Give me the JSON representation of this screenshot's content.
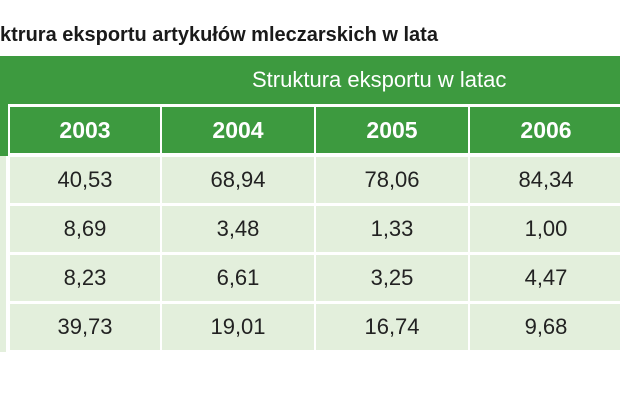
{
  "header": {
    "title": "ktrura eksportu artykułów mleczarskich w lata"
  },
  "table": {
    "group_header": "Struktura eksportu w latac",
    "years": [
      "2003",
      "2004",
      "2005",
      "2006"
    ],
    "rows": [
      [
        "40,53",
        "68,94",
        "78,06",
        "84,34"
      ],
      [
        "8,69",
        "3,48",
        "1,33",
        "1,00"
      ],
      [
        "8,23",
        "6,61",
        "3,25",
        "4,47"
      ],
      [
        "39,73",
        "19,01",
        "16,74",
        "9,68"
      ]
    ]
  }
}
